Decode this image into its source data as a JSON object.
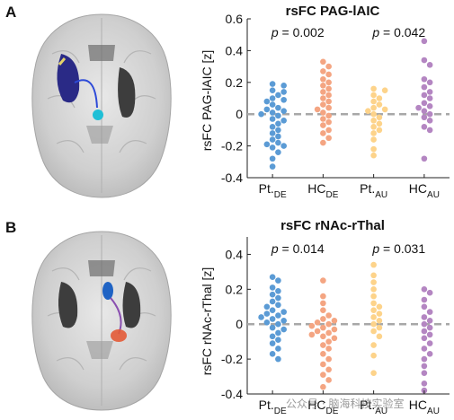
{
  "panels": [
    {
      "letter": "A"
    },
    {
      "letter": "B"
    }
  ],
  "watermark": "公众号 · 脑海科技实验室",
  "chart_data": [
    {
      "type": "scatter",
      "title": "rsFC PAG-lAIC",
      "ylabel": "rsFC PAG-lAIC [z]",
      "ylim": [
        -0.4,
        0.6
      ],
      "yticks": [
        "-0.4",
        "-0.2",
        "0",
        "0.2",
        "0.4",
        "0.6"
      ],
      "ytick_values": [
        -0.4,
        -0.2,
        0,
        0.2,
        0.4,
        0.6
      ],
      "reference_line": 0,
      "groups": [
        {
          "base": "Pt.",
          "sub": "DE",
          "color": "#5b9bd5",
          "values": [
            0.19,
            0.18,
            0.15,
            0.14,
            0.12,
            0.1,
            0.09,
            0.08,
            0.06,
            0.04,
            0.03,
            0.02,
            0.01,
            0.0,
            -0.01,
            -0.03,
            -0.04,
            -0.06,
            -0.08,
            -0.1,
            -0.12,
            -0.14,
            -0.16,
            -0.18,
            -0.19,
            -0.2,
            -0.21,
            -0.24,
            -0.28,
            -0.33
          ]
        },
        {
          "base": "HC",
          "sub": "DE",
          "color": "#f4a582",
          "values": [
            0.33,
            0.3,
            0.27,
            0.25,
            0.22,
            0.2,
            0.18,
            0.16,
            0.14,
            0.12,
            0.1,
            0.08,
            0.06,
            0.04,
            0.03,
            0.01,
            -0.01,
            -0.03,
            -0.05,
            -0.07,
            -0.1,
            -0.12,
            -0.15,
            -0.18
          ]
        },
        {
          "base": "Pt.",
          "sub": "AU",
          "color": "#fdd38a",
          "values": [
            0.16,
            0.15,
            0.12,
            0.1,
            0.08,
            0.06,
            0.04,
            0.03,
            0.02,
            0.0,
            -0.02,
            -0.04,
            -0.06,
            -0.08,
            -0.1,
            -0.12,
            -0.16,
            -0.22,
            -0.26
          ]
        },
        {
          "base": "HC",
          "sub": "AU",
          "color": "#b486c2",
          "values": [
            0.46,
            0.34,
            0.31,
            0.22,
            0.2,
            0.17,
            0.14,
            0.12,
            0.1,
            0.07,
            0.05,
            0.04,
            0.02,
            0.0,
            -0.02,
            -0.04,
            -0.08,
            -0.1,
            -0.28
          ]
        }
      ],
      "pvalues": [
        {
          "label": "p = 0.002",
          "between": [
            0,
            1
          ]
        },
        {
          "label": "p = 0.042",
          "between": [
            2,
            3
          ]
        }
      ]
    },
    {
      "type": "scatter",
      "title": "rsFC rNAc-rThal",
      "ylabel": "rsFC rNAc-rThal [z]",
      "ylim": [
        -0.4,
        0.5
      ],
      "yticks": [
        "-0.4",
        "-0.2",
        "0",
        "0.2",
        "0.4"
      ],
      "ytick_values": [
        -0.4,
        -0.2,
        0,
        0.2,
        0.4
      ],
      "reference_line": 0,
      "groups": [
        {
          "base": "Pt.",
          "sub": "DE",
          "color": "#5b9bd5",
          "values": [
            0.27,
            0.25,
            0.21,
            0.19,
            0.17,
            0.15,
            0.13,
            0.11,
            0.1,
            0.08,
            0.07,
            0.06,
            0.05,
            0.04,
            0.03,
            0.02,
            0.01,
            0.0,
            -0.02,
            -0.03,
            -0.05,
            -0.07,
            -0.09,
            -0.11,
            -0.14,
            -0.17,
            -0.2
          ]
        },
        {
          "base": "HC",
          "sub": "DE",
          "color": "#f4a582",
          "values": [
            0.25,
            0.16,
            0.12,
            0.08,
            0.05,
            0.03,
            0.02,
            0.01,
            0.0,
            -0.01,
            -0.02,
            -0.03,
            -0.04,
            -0.05,
            -0.06,
            -0.07,
            -0.08,
            -0.1,
            -0.12,
            -0.14,
            -0.17,
            -0.2,
            -0.23,
            -0.26,
            -0.29,
            -0.32,
            -0.36
          ]
        },
        {
          "base": "Pt.",
          "sub": "AU",
          "color": "#fdd38a",
          "values": [
            0.34,
            0.28,
            0.24,
            0.2,
            0.16,
            0.12,
            0.1,
            0.08,
            0.06,
            0.04,
            0.02,
            0.0,
            -0.02,
            -0.04,
            -0.07,
            -0.12,
            -0.18,
            -0.28
          ]
        },
        {
          "base": "HC",
          "sub": "AU",
          "color": "#b486c2",
          "values": [
            0.2,
            0.18,
            0.14,
            0.1,
            0.07,
            0.04,
            0.02,
            0.0,
            -0.02,
            -0.04,
            -0.06,
            -0.08,
            -0.11,
            -0.14,
            -0.17,
            -0.2,
            -0.24,
            -0.28,
            -0.34,
            -0.38
          ]
        }
      ],
      "pvalues": [
        {
          "label": "p = 0.014",
          "between": [
            0,
            1
          ]
        },
        {
          "label": "p = 0.031",
          "between": [
            2,
            3
          ]
        }
      ]
    }
  ]
}
